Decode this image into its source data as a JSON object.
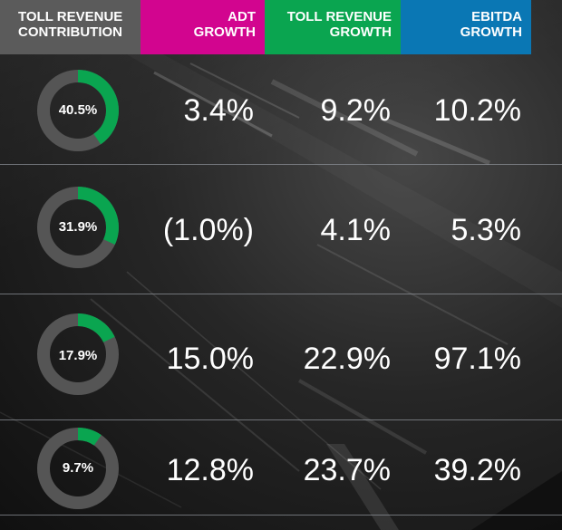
{
  "header": {
    "cells": [
      {
        "lines": [
          "TOLL REVENUE",
          "CONTRIBUTION"
        ],
        "bg": "#5b5b5b"
      },
      {
        "lines": [
          "ADT",
          "GROWTH"
        ],
        "bg": "#d2058f"
      },
      {
        "lines": [
          "TOLL REVENUE",
          "GROWTH"
        ],
        "bg": "#0aa550"
      },
      {
        "lines": [
          "EBITDA",
          "GROWTH"
        ],
        "bg": "#0a77b4"
      }
    ]
  },
  "colors": {
    "donut_track": "#555555",
    "donut_fill": "#0aa550"
  },
  "rows": [
    {
      "contribution": 0.405,
      "contribution_label": "40.5%",
      "adt_growth": "3.4%",
      "toll_revenue_growth": "9.2%",
      "ebitda_growth": "10.2%"
    },
    {
      "contribution": 0.319,
      "contribution_label": "31.9%",
      "adt_growth": "(1.0%)",
      "toll_revenue_growth": "4.1%",
      "ebitda_growth": "5.3%"
    },
    {
      "contribution": 0.179,
      "contribution_label": "17.9%",
      "adt_growth": "15.0%",
      "toll_revenue_growth": "22.9%",
      "ebitda_growth": "97.1%"
    },
    {
      "contribution": 0.097,
      "contribution_label": "9.7%",
      "adt_growth": "12.8%",
      "toll_revenue_growth": "23.7%",
      "ebitda_growth": "39.2%"
    }
  ],
  "chart_data": {
    "type": "table",
    "columns": [
      "TOLL REVENUE CONTRIBUTION",
      "ADT GROWTH",
      "TOLL REVENUE GROWTH",
      "EBITDA GROWTH"
    ],
    "rows": [
      [
        "40.5%",
        "3.4%",
        "9.2%",
        "10.2%"
      ],
      [
        "31.9%",
        "(1.0%)",
        "4.1%",
        "5.3%"
      ],
      [
        "17.9%",
        "15.0%",
        "22.9%",
        "97.1%"
      ],
      [
        "9.7%",
        "12.8%",
        "23.7%",
        "39.2%"
      ]
    ],
    "donut_values": [
      40.5,
      31.9,
      17.9,
      9.7
    ]
  }
}
